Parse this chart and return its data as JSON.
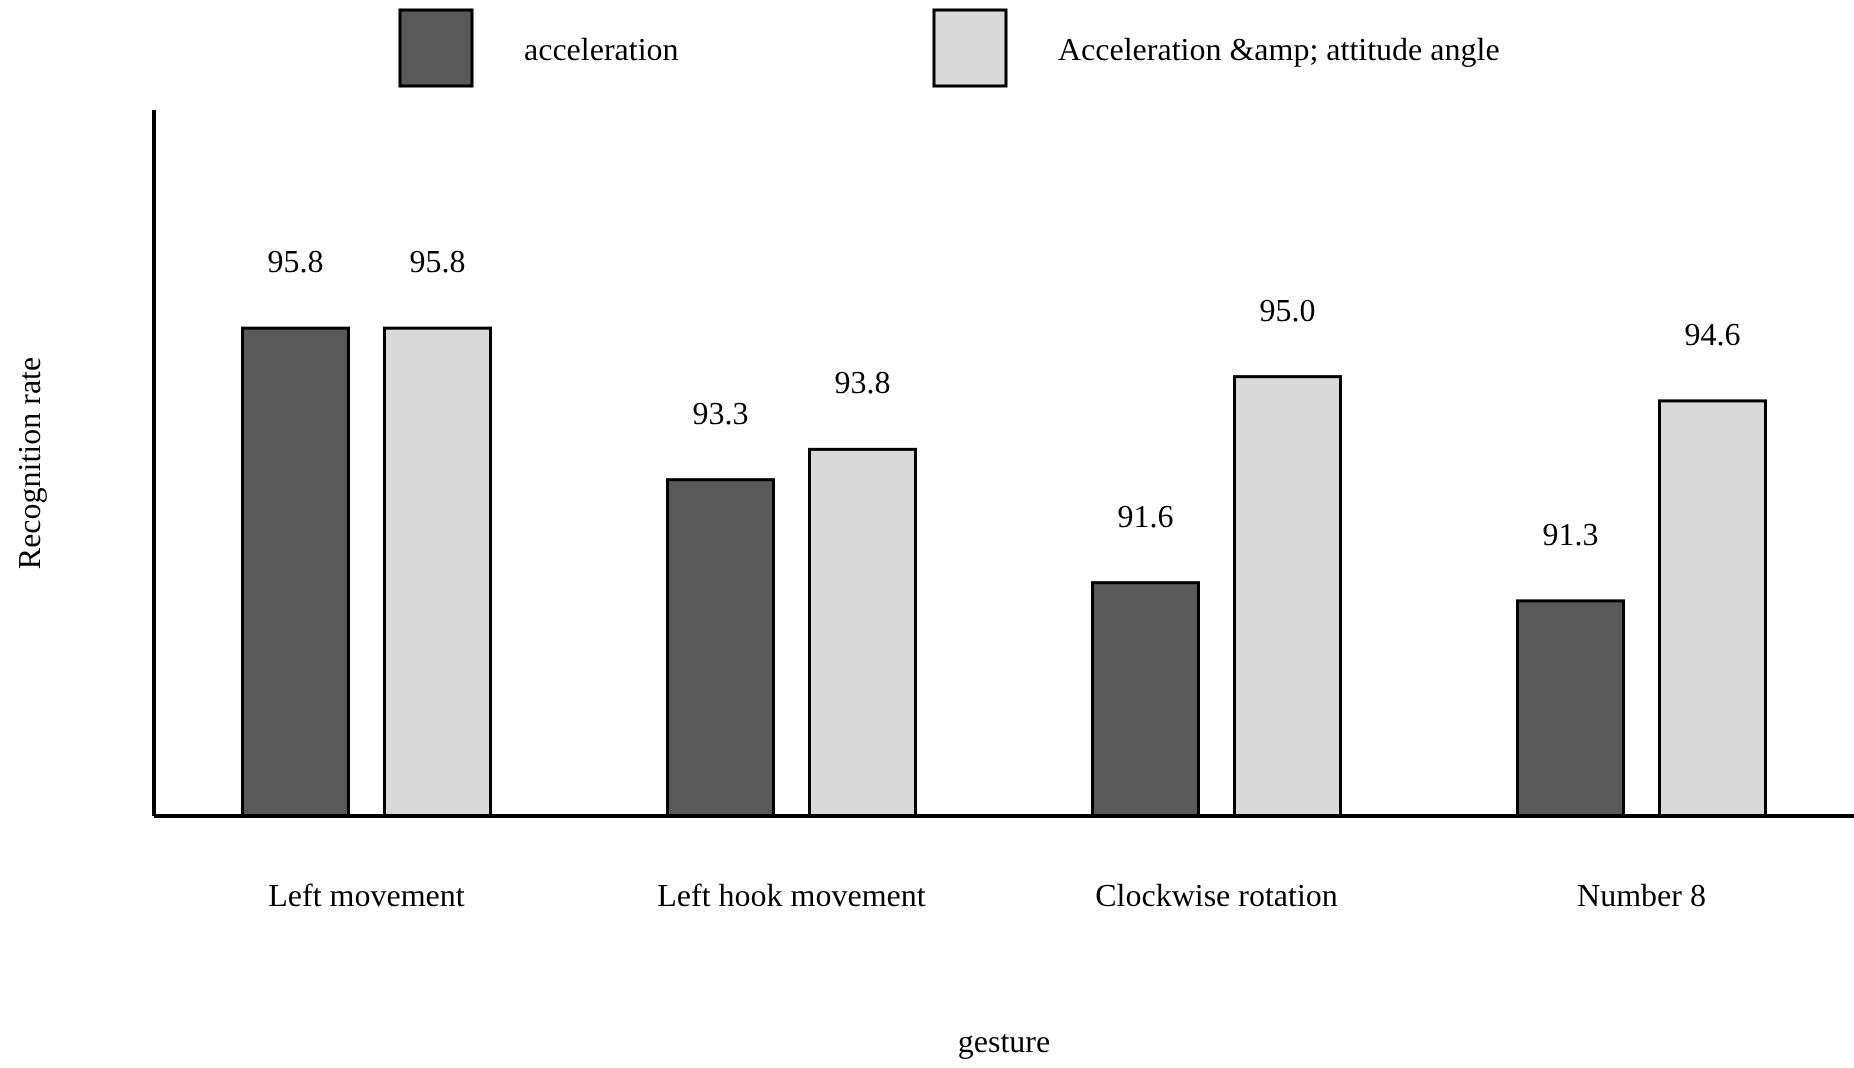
{
  "chart_data": {
    "type": "bar",
    "xlabel": "gesture",
    "ylabel": "Recognition rate",
    "categories": [
      "Left movement",
      "Left hook movement",
      "Clockwise rotation",
      "Number 8"
    ],
    "series": [
      {
        "name": "acceleration",
        "color": "#595959",
        "values": [
          95.8,
          93.3,
          91.6,
          91.3
        ],
        "value_labels": [
          "95.8",
          "93.3",
          "91.6",
          "91.3"
        ]
      },
      {
        "name": "Acceleration &amp; attitude angle",
        "color": "#d9d9d9",
        "values": [
          95.8,
          93.8,
          95.0,
          94.6
        ],
        "value_labels": [
          "95.8",
          "93.8",
          "95.0",
          "94.6"
        ]
      }
    ],
    "ylim": [
      87.75,
      99.4
    ],
    "tick_labels": "x",
    "legend": "top",
    "grid": false
  }
}
